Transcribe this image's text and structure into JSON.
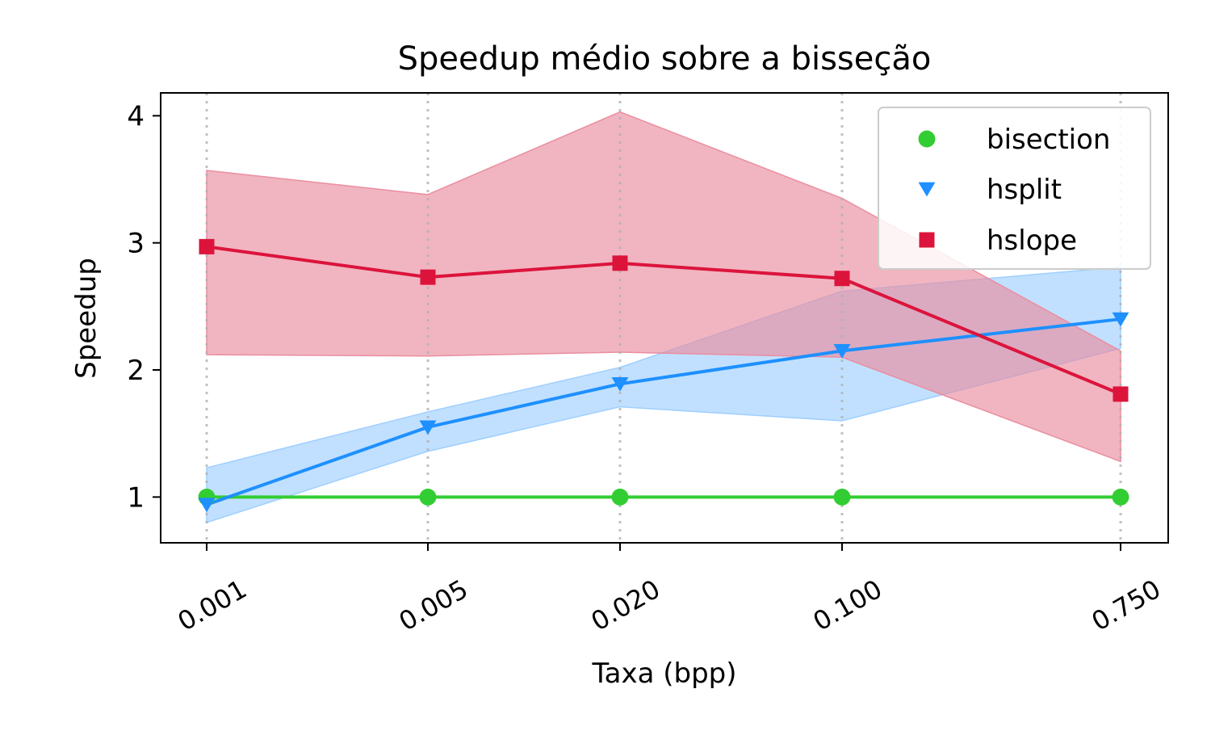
{
  "chart_data": {
    "type": "line",
    "title": "Speedup médio sobre a bisseção",
    "xlabel": "Taxa (bpp)",
    "ylabel": "Speedup",
    "categories": [
      "0.001",
      "0.005",
      "0.020",
      "0.100",
      "0.750"
    ],
    "x_scale": "categorical",
    "ylim": [
      0.64,
      4.18
    ],
    "yticks": [
      "1",
      "2",
      "3",
      "4"
    ],
    "grid": "vertical dotted at each x category",
    "legend_position": "top-right",
    "series": [
      {
        "name": "bisection",
        "marker": "circle",
        "color": "#32cd32",
        "values": [
          1.0,
          1.0,
          1.0,
          1.0,
          1.0
        ]
      },
      {
        "name": "hsplit",
        "marker": "triangle-down",
        "color": "#1e90ff",
        "band_color": "#9fcfff",
        "values": [
          0.94,
          1.55,
          1.89,
          2.15,
          2.4
        ],
        "band_lower": [
          0.8,
          1.36,
          1.71,
          1.6,
          2.17
        ],
        "band_upper": [
          1.23,
          1.67,
          2.02,
          2.62,
          2.81
        ]
      },
      {
        "name": "hslope",
        "marker": "square",
        "color": "#dc143c",
        "band_color": "#ea8ea0",
        "values": [
          2.97,
          2.73,
          2.84,
          2.72,
          1.81
        ],
        "band_lower": [
          2.12,
          2.11,
          2.14,
          2.1,
          1.28
        ],
        "band_upper": [
          3.57,
          3.38,
          4.03,
          3.35,
          2.15
        ]
      }
    ]
  }
}
